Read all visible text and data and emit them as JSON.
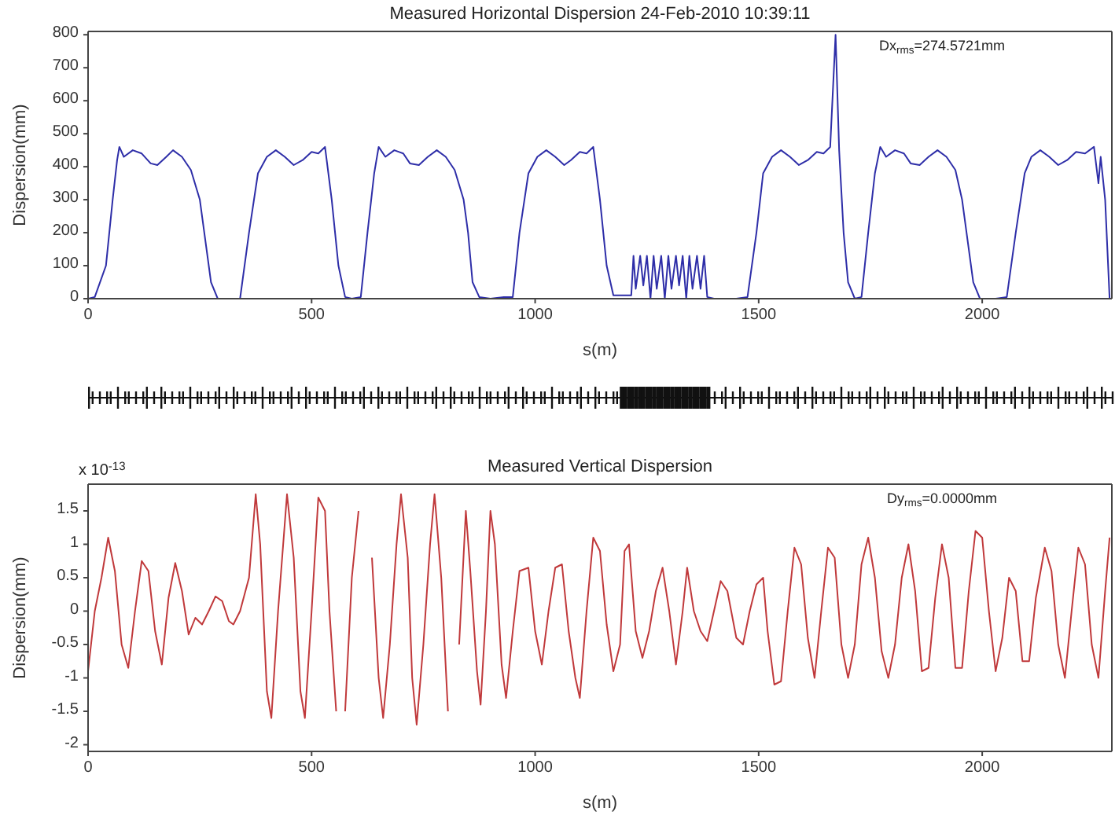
{
  "chart_data": [
    {
      "type": "line",
      "title": "Measured Horizontal Dispersion 24-Feb-2010 10:39:11",
      "xlabel": "s(m)",
      "ylabel": "Dispersion(mm)",
      "annotations": [
        "Dx$_{rms}$=274.5721mm"
      ],
      "xlim": [
        0,
        2290
      ],
      "ylim": [
        0,
        810
      ],
      "xticks": [
        0,
        500,
        1000,
        1500,
        2000
      ],
      "yticks": [
        0,
        100,
        200,
        300,
        400,
        500,
        600,
        700,
        800
      ],
      "series": [
        {
          "color": "#2e2ea8",
          "x": [
            0,
            15,
            40,
            55,
            65,
            70,
            80,
            100,
            120,
            140,
            155,
            175,
            190,
            210,
            230,
            250,
            260,
            275,
            290,
            320,
            340,
            360,
            380,
            400,
            420,
            440,
            460,
            480,
            500,
            515,
            530,
            545,
            560,
            575,
            590,
            610,
            625,
            640,
            650,
            665,
            685,
            705,
            720,
            740,
            760,
            780,
            800,
            820,
            840,
            850,
            860,
            875,
            900,
            930,
            950,
            965,
            985,
            1005,
            1025,
            1045,
            1065,
            1080,
            1100,
            1115,
            1130,
            1145,
            1160,
            1175,
            1200,
            1215,
            1220,
            1225,
            1235,
            1242,
            1250,
            1258,
            1265,
            1272,
            1282,
            1290,
            1298,
            1305,
            1315,
            1322,
            1330,
            1338,
            1345,
            1352,
            1362,
            1370,
            1378,
            1385,
            1400,
            1450,
            1475,
            1495,
            1510,
            1530,
            1550,
            1570,
            1590,
            1610,
            1630,
            1645,
            1660,
            1672,
            1680,
            1690,
            1700,
            1715,
            1730,
            1745,
            1760,
            1772,
            1785,
            1805,
            1825,
            1840,
            1860,
            1880,
            1900,
            1920,
            1940,
            1955,
            1965,
            1980,
            1995,
            2030,
            2055,
            2075,
            2095,
            2110,
            2130,
            2150,
            2170,
            2190,
            2210,
            2230,
            2250,
            2260,
            2265,
            2275,
            2285
          ],
          "values": [
            0,
            5,
            100,
            300,
            420,
            460,
            430,
            450,
            440,
            410,
            405,
            430,
            450,
            430,
            390,
            300,
            200,
            50,
            0,
            0,
            0,
            200,
            380,
            430,
            450,
            430,
            405,
            420,
            445,
            440,
            460,
            300,
            100,
            5,
            0,
            5,
            200,
            380,
            460,
            430,
            450,
            440,
            410,
            405,
            430,
            450,
            430,
            390,
            300,
            200,
            50,
            5,
            0,
            5,
            5,
            200,
            380,
            430,
            450,
            430,
            405,
            420,
            445,
            440,
            460,
            300,
            100,
            10,
            10,
            10,
            130,
            30,
            130,
            40,
            130,
            0,
            130,
            30,
            130,
            0,
            130,
            30,
            130,
            40,
            130,
            0,
            130,
            30,
            130,
            30,
            130,
            5,
            0,
            0,
            5,
            200,
            380,
            430,
            450,
            430,
            405,
            420,
            445,
            440,
            460,
            800,
            450,
            200,
            50,
            0,
            5,
            200,
            380,
            460,
            430,
            450,
            440,
            410,
            405,
            430,
            450,
            430,
            390,
            300,
            200,
            50,
            0,
            0,
            5,
            200,
            380,
            430,
            450,
            430,
            405,
            420,
            445,
            440,
            460,
            350,
            430,
            300,
            0
          ]
        }
      ]
    },
    {
      "type": "line",
      "title": "Measured Vertical Dispersion",
      "xlabel": "s(m)",
      "ylabel": "Dispersion(mm)",
      "annotations": [
        "Dy$_{rms}$=0.0000mm",
        "x 10$^{-13}$"
      ],
      "xlim": [
        0,
        2290
      ],
      "ylim": [
        -2.1,
        1.9
      ],
      "xticks": [
        0,
        500,
        1000,
        1500,
        2000
      ],
      "yticks": [
        -2,
        -1.5,
        -1,
        -0.5,
        0,
        0.5,
        1,
        1.5
      ],
      "series": [
        {
          "color": "#c0393b",
          "x": [
            0,
            15,
            30,
            45,
            60,
            75,
            90,
            105,
            120,
            135,
            150,
            165,
            180,
            195,
            210,
            225,
            240,
            255,
            270,
            285,
            300,
            315,
            325,
            340,
            360,
            375,
            385,
            400,
            410,
            425,
            445,
            460,
            475,
            485,
            500,
            515,
            530,
            540,
            555,
            560,
            575,
            590,
            605,
            620,
            635,
            650,
            660,
            675,
            690,
            700,
            715,
            725,
            735,
            750,
            765,
            775,
            790,
            805,
            815,
            830,
            845,
            855,
            870,
            878,
            890,
            900,
            910,
            925,
            935,
            950,
            965,
            985,
            1000,
            1015,
            1030,
            1045,
            1060,
            1075,
            1090,
            1100,
            1115,
            1130,
            1145,
            1160,
            1175,
            1190,
            1200,
            1210,
            1225,
            1240,
            1255,
            1270,
            1285,
            1300,
            1315,
            1330,
            1340,
            1355,
            1370,
            1385,
            1400,
            1415,
            1430,
            1450,
            1465,
            1480,
            1495,
            1510,
            1520,
            1535,
            1550,
            1565,
            1580,
            1595,
            1610,
            1625,
            1640,
            1655,
            1670,
            1685,
            1700,
            1715,
            1730,
            1745,
            1760,
            1775,
            1790,
            1805,
            1820,
            1835,
            1850,
            1865,
            1880,
            1895,
            1910,
            1925,
            1940,
            1955,
            1970,
            1985,
            2000,
            2015,
            2030,
            2045,
            2060,
            2075,
            2090,
            2105,
            2120,
            2140,
            2155,
            2170,
            2185,
            2200,
            2215,
            2230,
            2245,
            2260,
            2275,
            2285
          ],
          "values": [
            -0.9,
            0,
            0.5,
            1.1,
            0.6,
            -0.5,
            -0.85,
            0,
            0.75,
            0.6,
            -0.3,
            -0.8,
            0.2,
            0.72,
            0.3,
            -0.35,
            -0.1,
            -0.2,
            0,
            0.22,
            0.15,
            -0.15,
            -0.2,
            0,
            0.5,
            1.75,
            1,
            -1.2,
            -1.6,
            0,
            1.75,
            0.8,
            -1.2,
            -1.6,
            0,
            1.7,
            1.5,
            0,
            -1.5,
            null,
            -1.5,
            0.5,
            1.5,
            null,
            0.8,
            -1,
            -1.6,
            -0.5,
            1,
            1.75,
            0.8,
            -1,
            -1.7,
            -0.5,
            1,
            1.75,
            0.5,
            -1.5,
            null,
            -0.5,
            1.5,
            0.6,
            -0.9,
            -1.4,
            0,
            1.5,
            1,
            -0.8,
            -1.3,
            -0.3,
            0.6,
            0.65,
            -0.3,
            -0.8,
            0,
            0.65,
            0.7,
            -0.3,
            -1,
            -1.3,
            0,
            1.1,
            0.9,
            -0.2,
            -0.9,
            -0.5,
            0.9,
            1,
            -0.3,
            -0.7,
            -0.3,
            0.3,
            0.65,
            0,
            -0.8,
            0,
            0.65,
            0,
            -0.3,
            -0.45,
            0,
            0.45,
            0.3,
            -0.4,
            -0.5,
            0,
            0.4,
            0.5,
            -0.3,
            -1.1,
            -1.05,
            0,
            0.95,
            0.7,
            -0.4,
            -1,
            0,
            0.95,
            0.8,
            -0.5,
            -1,
            -0.5,
            0.7,
            1.1,
            0.5,
            -0.6,
            -1,
            -0.5,
            0.5,
            1,
            0.3,
            -0.9,
            -0.85,
            0.2,
            1,
            0.5,
            -0.85,
            -0.85,
            0.3,
            1.2,
            1.1,
            0,
            -0.9,
            -0.4,
            0.5,
            0.3,
            -0.75,
            -0.75,
            0.2,
            0.95,
            0.6,
            -0.5,
            -1,
            0,
            0.95,
            0.7,
            -0.5,
            -1,
            0.3,
            1.1
          ]
        }
      ]
    }
  ]
}
